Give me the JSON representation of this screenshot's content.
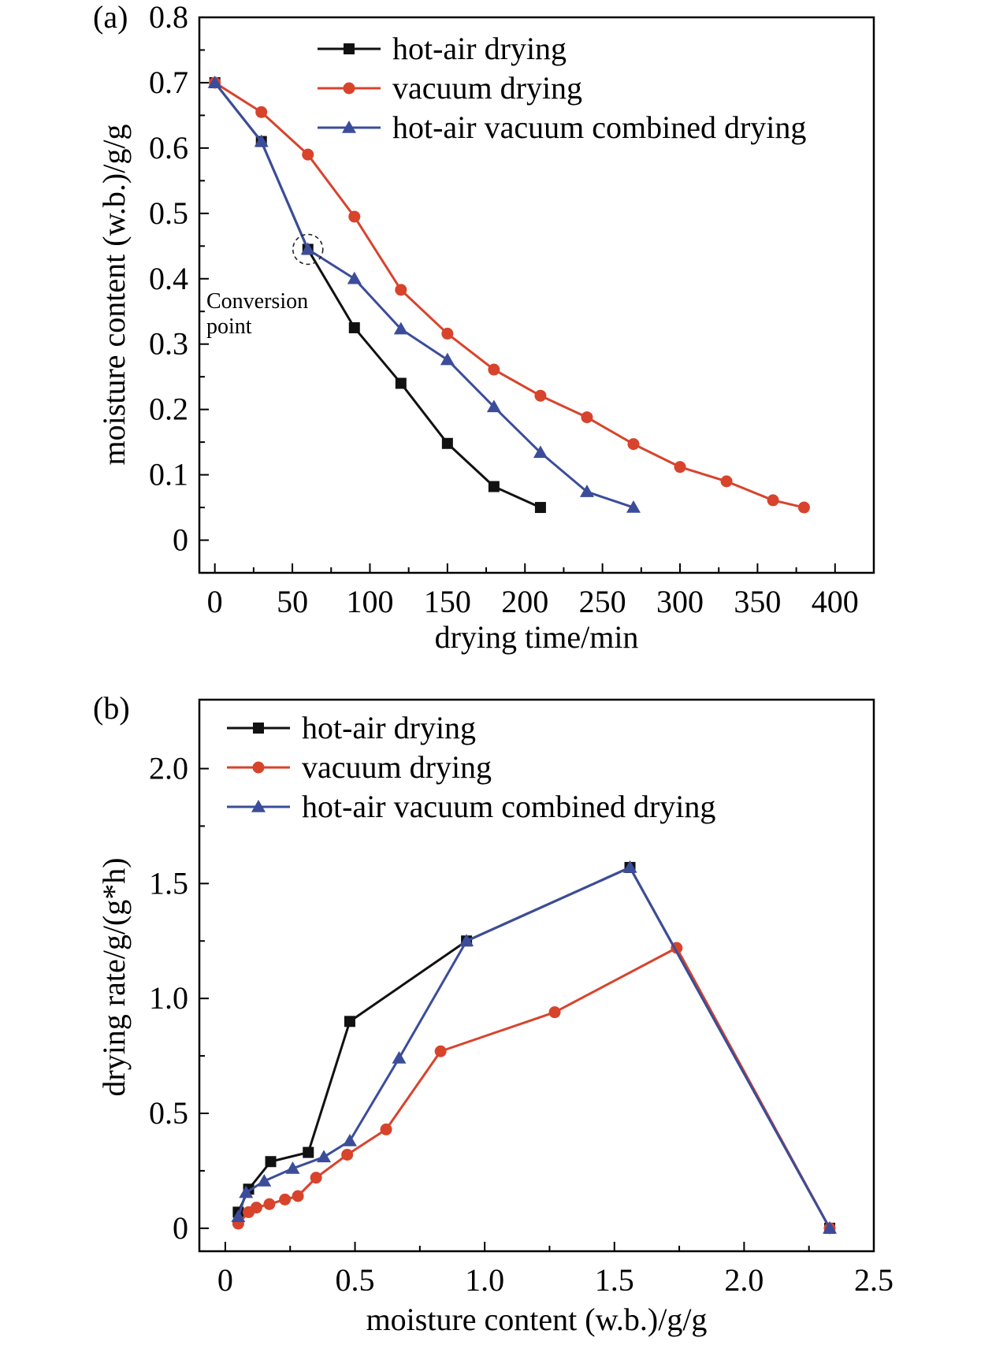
{
  "colors": {
    "hot_air": "#111111",
    "vacuum": "#d8432c",
    "combined": "#3b4d9a"
  },
  "chart_data": [
    {
      "panel_label": "(a)",
      "type": "line",
      "xlabel": "drying time/min",
      "ylabel": "moisture content (w.b.)/g/g",
      "xlim": [
        -10,
        425
      ],
      "ylim": [
        -0.05,
        0.8
      ],
      "xticks": [
        0,
        50,
        100,
        150,
        200,
        250,
        300,
        350,
        400
      ],
      "yticks": [
        0,
        0.1,
        0.2,
        0.3,
        0.4,
        0.5,
        0.6,
        0.7,
        0.8
      ],
      "xtick_labels": [
        "0",
        "50",
        "100",
        "150",
        "200",
        "250",
        "300",
        "350",
        "400"
      ],
      "ytick_labels": [
        "0",
        "0.1",
        "0.2",
        "0.3",
        "0.4",
        "0.5",
        "0.6",
        "0.7",
        "0.8"
      ],
      "legend_position": "top-right",
      "annotation": {
        "line1": "Conversion",
        "line2": "point",
        "x": 60,
        "y": 0.445
      },
      "series": [
        {
          "name": "hot-air drying",
          "color": "#111111",
          "marker": "square",
          "x": [
            0,
            30,
            60,
            90,
            120,
            150,
            180,
            210
          ],
          "y": [
            0.7,
            0.61,
            0.445,
            0.325,
            0.24,
            0.148,
            0.082,
            0.05
          ]
        },
        {
          "name": "vacuum drying",
          "color": "#d8432c",
          "marker": "circle",
          "x": [
            0,
            30,
            60,
            90,
            120,
            150,
            180,
            210,
            240,
            270,
            300,
            330,
            360,
            380
          ],
          "y": [
            0.7,
            0.655,
            0.59,
            0.495,
            0.383,
            0.316,
            0.261,
            0.221,
            0.188,
            0.147,
            0.112,
            0.09,
            0.061,
            0.05
          ]
        },
        {
          "name": "hot-air vacuum combined drying",
          "color": "#3b4d9a",
          "marker": "triangle",
          "x": [
            0,
            30,
            60,
            90,
            120,
            150,
            180,
            210,
            240,
            270
          ],
          "y": [
            0.7,
            0.61,
            0.445,
            0.4,
            0.323,
            0.276,
            0.204,
            0.134,
            0.074,
            0.05
          ]
        }
      ]
    },
    {
      "panel_label": "(b)",
      "type": "line",
      "xlabel": "moisture content (w.b.)/g/g",
      "ylabel": "drying rate/g/(g*h)",
      "xlim": [
        -0.1,
        2.5
      ],
      "ylim": [
        -0.1,
        2.3
      ],
      "xticks": [
        0,
        0.5,
        1.0,
        1.5,
        2.0,
        2.5
      ],
      "yticks": [
        0,
        0.5,
        1.0,
        1.5,
        2.0
      ],
      "xtick_labels": [
        "0",
        "0.5",
        "1.0",
        "1.5",
        "2.0",
        "2.5"
      ],
      "ytick_labels": [
        "0",
        "0.5",
        "1.0",
        "1.5",
        "2.0"
      ],
      "legend_position": "top-left",
      "series": [
        {
          "name": "hot-air drying",
          "color": "#111111",
          "marker": "square",
          "x": [
            2.33,
            1.56,
            0.93,
            0.48,
            0.32,
            0.175,
            0.09,
            0.05
          ],
          "y": [
            0.0,
            1.57,
            1.25,
            0.9,
            0.33,
            0.29,
            0.17,
            0.07
          ]
        },
        {
          "name": "vacuum drying",
          "color": "#d8432c",
          "marker": "circle",
          "x": [
            2.33,
            1.74,
            1.27,
            0.83,
            0.62,
            0.47,
            0.35,
            0.28,
            0.23,
            0.17,
            0.12,
            0.09,
            0.05
          ],
          "y": [
            0.0,
            1.22,
            0.94,
            0.77,
            0.43,
            0.32,
            0.22,
            0.14,
            0.125,
            0.105,
            0.09,
            0.07,
            0.02
          ]
        },
        {
          "name": "hot-air vacuum combined drying",
          "color": "#3b4d9a",
          "marker": "triangle",
          "x": [
            2.33,
            1.56,
            0.93,
            0.67,
            0.48,
            0.38,
            0.26,
            0.15,
            0.08,
            0.05
          ],
          "y": [
            0.0,
            1.57,
            1.25,
            0.74,
            0.38,
            0.31,
            0.26,
            0.205,
            0.155,
            0.05
          ]
        }
      ]
    }
  ]
}
